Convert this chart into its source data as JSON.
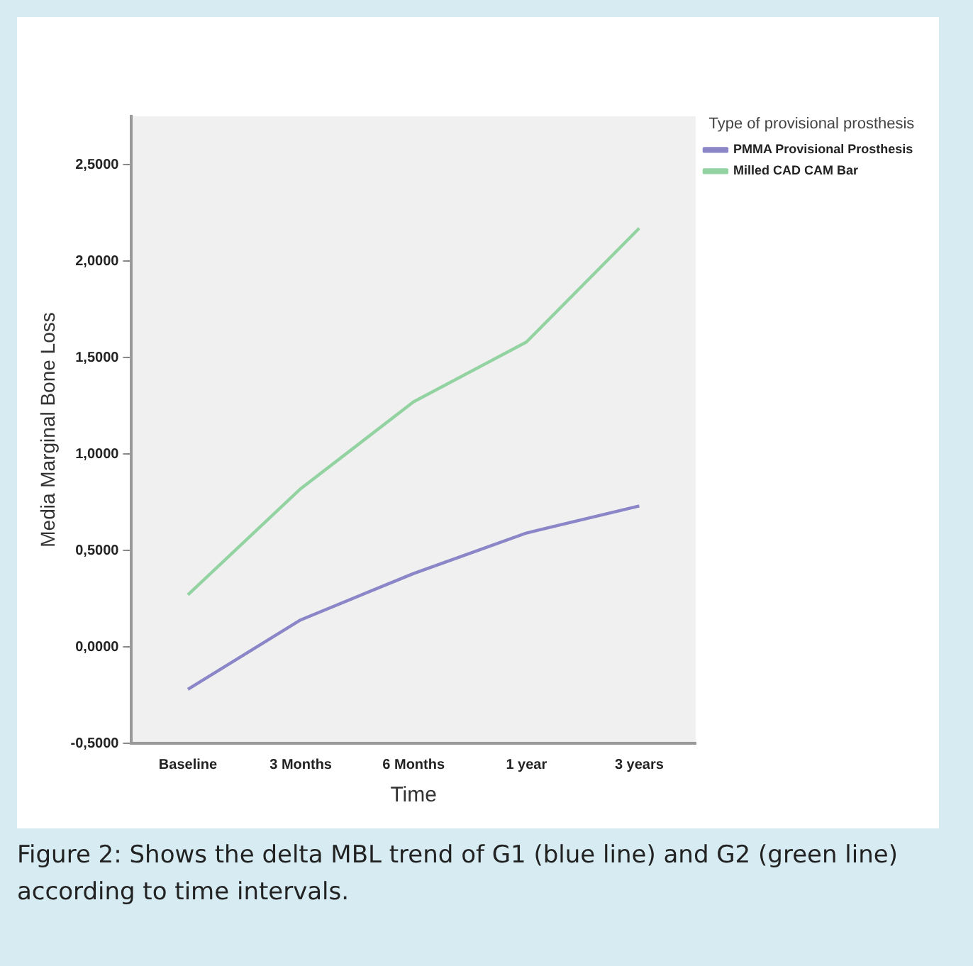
{
  "chart_data": {
    "type": "line",
    "xlabel": "Time",
    "ylabel": "Media Marginal Bone Loss",
    "legend_title": "Type of provisional prosthesis",
    "categories": [
      "Baseline",
      "3 Months",
      "6 Months",
      "1 year",
      "3 years"
    ],
    "series": [
      {
        "name": "PMMA Provisional Prosthesis",
        "color": "#8a86c8",
        "values": [
          -0.22,
          0.14,
          0.38,
          0.59,
          0.73
        ]
      },
      {
        "name": "Milled CAD CAM Bar",
        "color": "#93d3a2",
        "values": [
          0.27,
          0.82,
          1.27,
          1.58,
          2.17
        ]
      }
    ],
    "ylim": [
      -0.5,
      2.75
    ],
    "yticks": [
      {
        "value": -0.5,
        "label": "-0,5000"
      },
      {
        "value": 0,
        "label": "0,0000"
      },
      {
        "value": 0.5,
        "label": "0,5000"
      },
      {
        "value": 1,
        "label": "1,0000"
      },
      {
        "value": 1.5,
        "label": "1,5000"
      },
      {
        "value": 2,
        "label": "2,0000"
      },
      {
        "value": 2.5,
        "label": "2,5000"
      }
    ],
    "grid": false,
    "legend": "top right",
    "marker": "none",
    "line_style": "solid",
    "annotations": [
      "Figure 2: Shows the delta MBL trend of G1 (blue line) and G2 (green line) according to time intervals."
    ]
  }
}
